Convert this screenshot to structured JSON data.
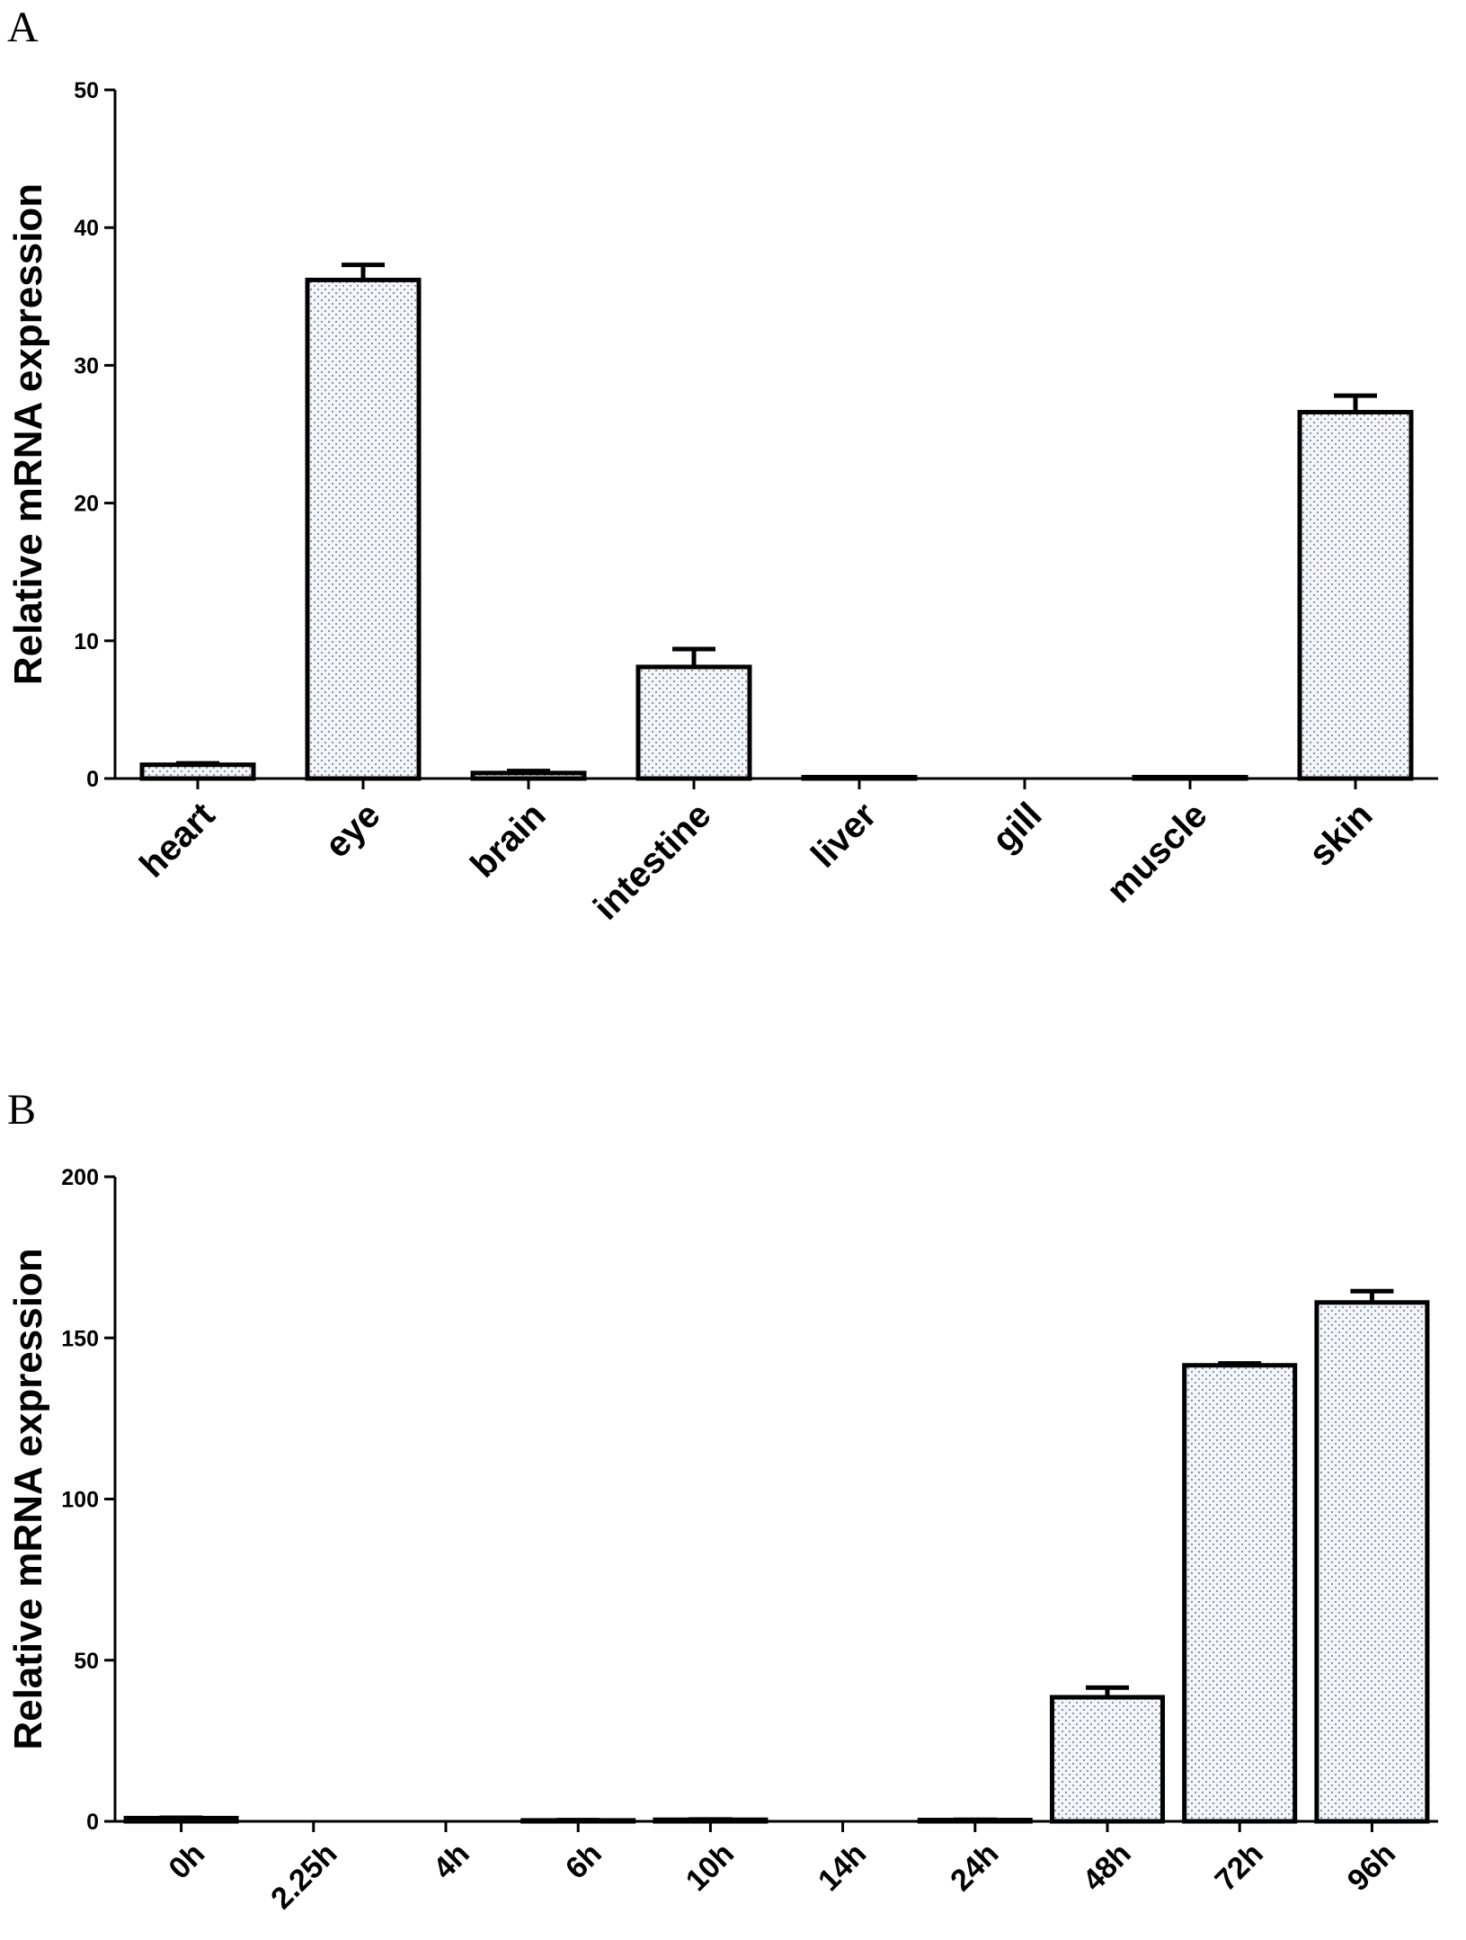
{
  "chart_data": [
    {
      "type": "bar",
      "panel_label": "A",
      "ylabel": "Relative mRNA expression",
      "xlabel": "",
      "categories": [
        "heart",
        "eye",
        "brain",
        "intestine",
        "liver",
        "gill",
        "muscle",
        "skin"
      ],
      "values": [
        1.0,
        36.2,
        0.4,
        8.1,
        0.1,
        0.0,
        0.1,
        26.6
      ],
      "errors": [
        0.1,
        1.1,
        0.15,
        1.3,
        0.0,
        0.0,
        0.0,
        1.2
      ],
      "ylim": [
        0,
        50
      ],
      "yticks": [
        0,
        10,
        20,
        30,
        40,
        50
      ],
      "grid": false,
      "fill_pattern": "dotted",
      "bar_color": "#dde3ee",
      "edge_color": "#000000"
    },
    {
      "type": "bar",
      "panel_label": "B",
      "ylabel": "Relative mRNA expression",
      "xlabel": "",
      "categories": [
        "0h",
        "2.25h",
        "4h",
        "6h",
        "10h",
        "14h",
        "24h",
        "48h",
        "72h",
        "96h"
      ],
      "values": [
        1.0,
        0.0,
        0.0,
        0.3,
        0.5,
        0.0,
        0.4,
        38.5,
        141.5,
        161.0
      ],
      "errors": [
        0.1,
        0.0,
        0.0,
        0.1,
        0.1,
        0.0,
        0.1,
        3.0,
        0.6,
        3.5
      ],
      "ylim": [
        0,
        200
      ],
      "yticks": [
        0,
        50,
        100,
        150,
        200
      ],
      "grid": false,
      "fill_pattern": "dotted",
      "bar_color": "#dde3ee",
      "edge_color": "#000000"
    }
  ]
}
